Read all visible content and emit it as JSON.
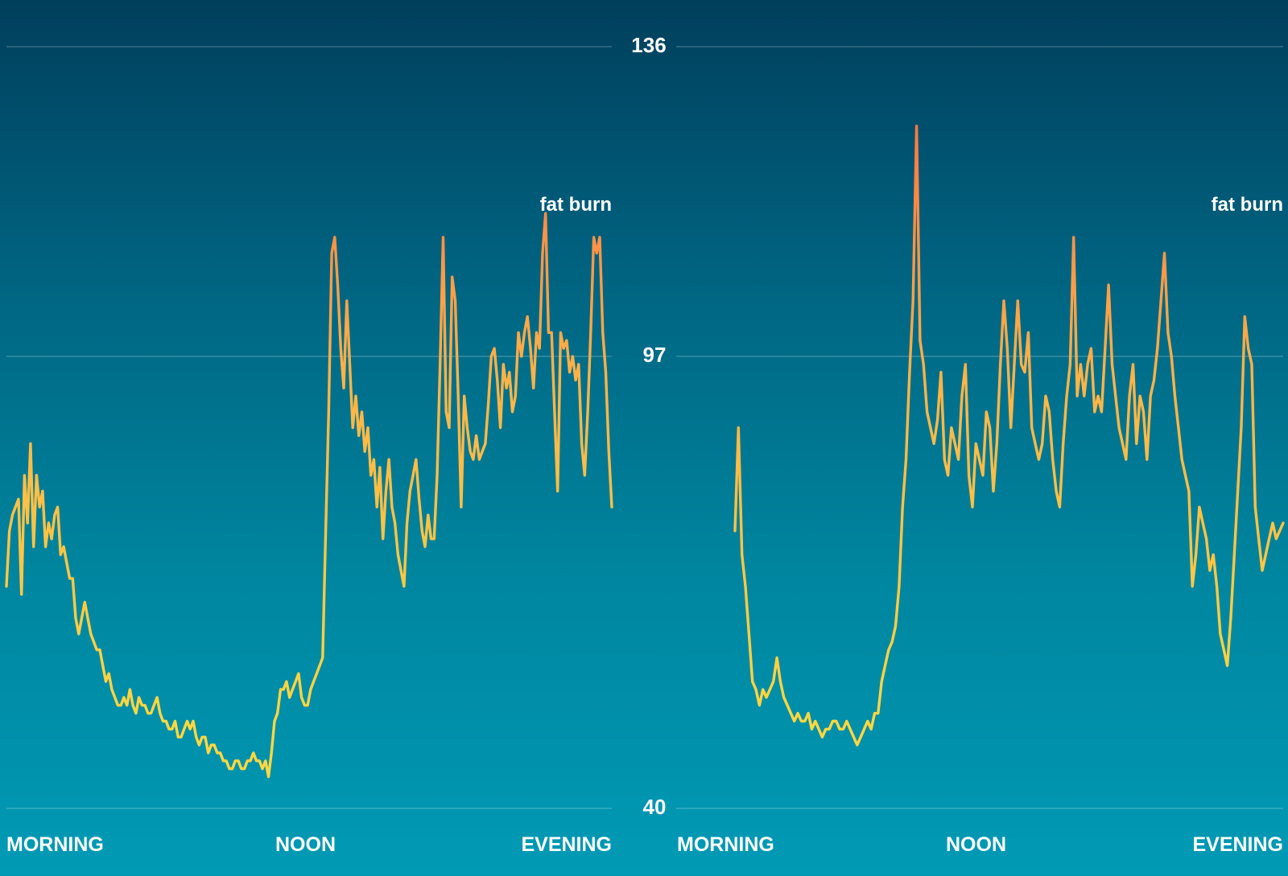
{
  "colors": {
    "bg_top": "#003f5c",
    "bg_bottom": "#009ab5",
    "line_low": "#ffd740",
    "line_high": "#ff7043",
    "text": "#ffffff"
  },
  "y_ticks": [
    "136",
    "97",
    "40"
  ],
  "chart_data": [
    {
      "type": "line",
      "x_labels": [
        "MORNING",
        "NOON",
        "EVENING"
      ],
      "annotation": "fat burn",
      "annotation_y": 118,
      "ylim": [
        40,
        136
      ],
      "yticks": [
        136,
        97,
        40
      ],
      "grid": true,
      "series": [
        {
          "values": [
            68,
            75,
            77,
            78,
            79,
            67,
            82,
            76,
            86,
            73,
            82,
            78,
            80,
            73,
            76,
            74,
            77,
            78,
            72,
            73,
            71,
            69,
            69,
            64,
            62,
            64,
            66,
            64,
            62,
            61,
            60,
            60,
            58,
            56,
            57,
            55,
            54,
            53,
            53,
            54,
            53,
            55,
            53,
            52,
            54,
            53,
            53,
            52,
            52,
            53,
            54,
            52,
            51,
            51,
            50,
            50,
            51,
            49,
            49,
            50,
            51,
            50,
            51,
            49,
            48,
            49,
            49,
            47,
            48,
            48,
            47,
            47,
            46,
            46,
            45,
            45,
            46,
            46,
            45,
            45,
            46,
            46,
            47,
            46,
            46,
            45,
            46,
            44,
            47,
            51,
            52,
            55,
            55,
            56,
            54,
            55,
            56,
            57,
            54,
            53,
            53,
            55,
            56,
            57,
            58,
            59,
            75,
            90,
            110,
            112,
            106,
            98,
            93,
            104,
            96,
            88,
            92,
            87,
            90,
            85,
            88,
            82,
            84,
            78,
            83,
            74,
            80,
            84,
            78,
            76,
            72,
            70,
            68,
            76,
            80,
            82,
            84,
            79,
            75,
            73,
            77,
            74,
            74,
            82,
            96,
            112,
            90,
            88,
            107,
            104,
            92,
            78,
            92,
            88,
            85,
            84,
            87,
            84,
            85,
            86,
            91,
            97,
            98,
            94,
            88,
            96,
            93,
            95,
            90,
            92,
            100,
            97,
            100,
            102,
            98,
            93,
            100,
            98,
            110,
            115,
            100,
            100,
            90,
            80,
            100,
            98,
            99,
            95,
            97,
            94,
            96,
            86,
            82,
            90,
            100,
            112,
            110,
            112,
            100,
            95,
            85,
            78
          ],
          "segments": [
            [
              0,
              5
            ],
            [
              5,
              7
            ],
            [
              7,
              10
            ],
            [
              10,
              12
            ],
            [
              12,
              15
            ]
          ]
        }
      ]
    },
    {
      "type": "line",
      "x_labels": [
        "MORNING",
        "NOON",
        "EVENING"
      ],
      "annotation": "fat burn",
      "annotation_y": 118,
      "ylim": [
        40,
        136
      ],
      "yticks": [
        136,
        97,
        40
      ],
      "grid": true,
      "series": [
        {
          "values": [
            75,
            88,
            72,
            68,
            62,
            56,
            55,
            53,
            55,
            54,
            55,
            56,
            59,
            56,
            54,
            53,
            52,
            51,
            52,
            51,
            51,
            52,
            50,
            51,
            50,
            49,
            50,
            50,
            51,
            51,
            50,
            50,
            51,
            50,
            49,
            48,
            49,
            50,
            51,
            50,
            52,
            52,
            56,
            58,
            60,
            61,
            63,
            68,
            78,
            84,
            95,
            104,
            126,
            99,
            96,
            90,
            88,
            86,
            89,
            95,
            84,
            82,
            88,
            86,
            84,
            92,
            96,
            82,
            78,
            86,
            84,
            82,
            90,
            88,
            80,
            86,
            96,
            104,
            98,
            88,
            96,
            104,
            96,
            95,
            100,
            88,
            86,
            84,
            86,
            92,
            90,
            84,
            80,
            78,
            86,
            92,
            96,
            112,
            92,
            96,
            92,
            96,
            98,
            90,
            92,
            90,
            98,
            106,
            96,
            92,
            88,
            86,
            84,
            92,
            96,
            86,
            92,
            90,
            84,
            92,
            94,
            98,
            104,
            110,
            100,
            97,
            92,
            88,
            84,
            82,
            80,
            68,
            72,
            78,
            76,
            74,
            70,
            72,
            68,
            62,
            60,
            58,
            64,
            72,
            80,
            88,
            102,
            98,
            96,
            78,
            74,
            70,
            72,
            74,
            76,
            74,
            75,
            76
          ],
          "segments": [
            [
              0,
              5
            ]
          ]
        }
      ]
    }
  ]
}
